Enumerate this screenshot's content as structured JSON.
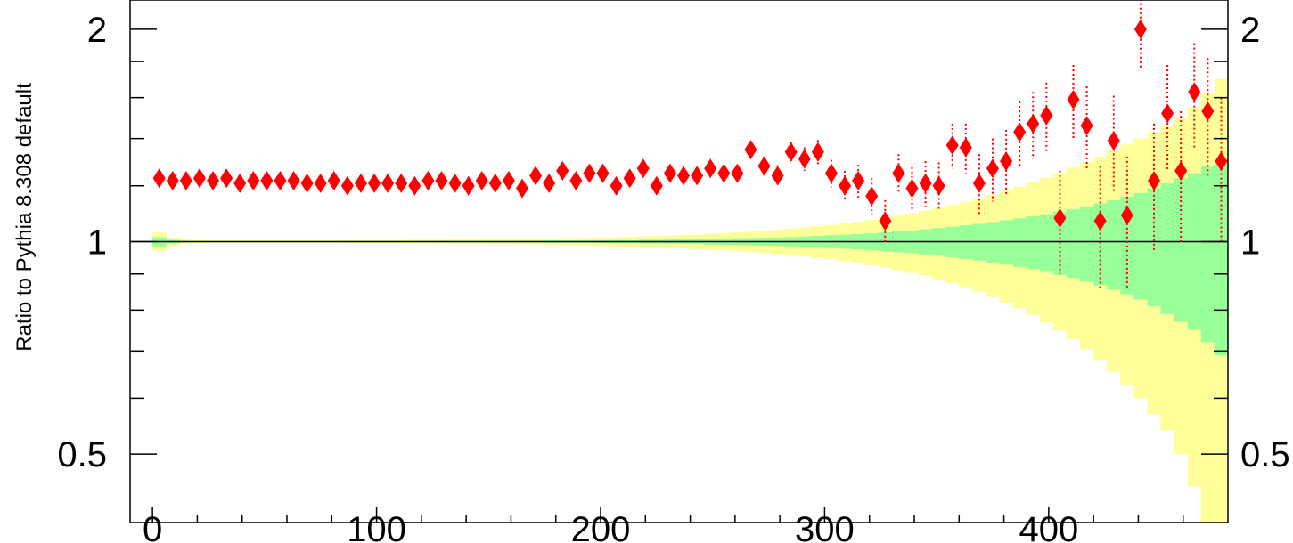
{
  "chart_data": {
    "type": "scatter",
    "ylabel": "Ratio to Pythia 8.308 default",
    "xlim": [
      -10,
      480
    ],
    "ylim": [
      0.4,
      2.2
    ],
    "y_scale": "log",
    "x_tick_labels": [
      "0",
      "100",
      "200",
      "300",
      "400"
    ],
    "x_tick_values": [
      0,
      100,
      200,
      300,
      400
    ],
    "y_tick_labels": [
      "0.5",
      "1",
      "2"
    ],
    "y_tick_values": [
      0.5,
      1,
      2
    ],
    "reference_line": 1,
    "grid": false,
    "colors": {
      "marker": "#ff0000",
      "error": "#ff0000",
      "band_inner": "#99ff99",
      "band_outer": "#ffff99",
      "reference": "#000000"
    },
    "band": {
      "bin_edges": [
        0,
        6,
        12,
        18,
        24,
        30,
        36,
        42,
        48,
        54,
        60,
        66,
        72,
        78,
        84,
        90,
        96,
        102,
        108,
        114,
        120,
        126,
        132,
        138,
        144,
        150,
        156,
        162,
        168,
        174,
        180,
        186,
        192,
        198,
        204,
        210,
        216,
        222,
        228,
        234,
        240,
        246,
        252,
        258,
        264,
        270,
        276,
        282,
        288,
        294,
        300,
        306,
        312,
        318,
        324,
        330,
        336,
        342,
        348,
        354,
        360,
        366,
        372,
        378,
        384,
        390,
        396,
        402,
        408,
        414,
        420,
        426,
        432,
        438,
        444,
        450,
        456,
        462,
        468,
        474,
        480
      ],
      "inner_half": [
        0.015,
        0.006,
        0.003,
        0.002,
        0.002,
        0.002,
        0.002,
        0.002,
        0.002,
        0.002,
        0.002,
        0.002,
        0.002,
        0.002,
        0.002,
        0.002,
        0.002,
        0.002,
        0.002,
        0.002,
        0.002,
        0.003,
        0.003,
        0.003,
        0.003,
        0.003,
        0.003,
        0.003,
        0.003,
        0.004,
        0.004,
        0.004,
        0.004,
        0.005,
        0.005,
        0.005,
        0.006,
        0.006,
        0.007,
        0.007,
        0.008,
        0.009,
        0.01,
        0.011,
        0.012,
        0.013,
        0.014,
        0.015,
        0.017,
        0.019,
        0.021,
        0.023,
        0.025,
        0.028,
        0.031,
        0.034,
        0.037,
        0.041,
        0.045,
        0.05,
        0.055,
        0.06,
        0.066,
        0.072,
        0.079,
        0.086,
        0.094,
        0.103,
        0.112,
        0.122,
        0.133,
        0.145,
        0.158,
        0.172,
        0.19,
        0.21,
        0.23,
        0.25,
        0.28,
        0.31
      ],
      "outer_half": [
        0.03,
        0.013,
        0.007,
        0.005,
        0.004,
        0.004,
        0.004,
        0.004,
        0.004,
        0.004,
        0.004,
        0.004,
        0.004,
        0.004,
        0.005,
        0.005,
        0.005,
        0.005,
        0.005,
        0.006,
        0.006,
        0.006,
        0.007,
        0.007,
        0.007,
        0.008,
        0.008,
        0.009,
        0.009,
        0.01,
        0.011,
        0.012,
        0.013,
        0.014,
        0.015,
        0.016,
        0.017,
        0.019,
        0.02,
        0.022,
        0.024,
        0.026,
        0.028,
        0.031,
        0.033,
        0.036,
        0.04,
        0.043,
        0.047,
        0.052,
        0.056,
        0.062,
        0.068,
        0.074,
        0.081,
        0.089,
        0.097,
        0.106,
        0.116,
        0.127,
        0.138,
        0.151,
        0.165,
        0.18,
        0.196,
        0.213,
        0.232,
        0.252,
        0.273,
        0.296,
        0.32,
        0.346,
        0.373,
        0.4,
        0.43,
        0.46,
        0.5,
        0.55,
        0.62,
        0.7
      ]
    },
    "points": {
      "x": [
        3,
        9,
        15,
        21,
        27,
        33,
        39,
        45,
        51,
        57,
        63,
        69,
        75,
        81,
        87,
        93,
        99,
        105,
        111,
        117,
        123,
        129,
        135,
        141,
        147,
        153,
        159,
        165,
        171,
        177,
        183,
        189,
        195,
        201,
        207,
        213,
        219,
        225,
        231,
        237,
        243,
        249,
        255,
        261,
        267,
        273,
        279,
        285,
        291,
        297,
        303,
        309,
        315,
        321,
        327,
        333,
        339,
        345,
        351,
        357,
        363,
        369,
        375,
        381,
        387,
        393,
        399,
        405,
        411,
        417,
        423,
        429,
        435,
        441,
        447,
        453,
        459,
        465,
        471,
        477
      ],
      "y": [
        1.23,
        1.22,
        1.22,
        1.23,
        1.22,
        1.23,
        1.21,
        1.22,
        1.22,
        1.22,
        1.22,
        1.21,
        1.21,
        1.22,
        1.2,
        1.21,
        1.21,
        1.21,
        1.21,
        1.2,
        1.22,
        1.22,
        1.21,
        1.2,
        1.22,
        1.21,
        1.22,
        1.19,
        1.24,
        1.21,
        1.26,
        1.22,
        1.25,
        1.25,
        1.2,
        1.23,
        1.27,
        1.2,
        1.25,
        1.24,
        1.24,
        1.27,
        1.25,
        1.25,
        1.35,
        1.28,
        1.24,
        1.34,
        1.31,
        1.34,
        1.25,
        1.2,
        1.22,
        1.16,
        1.07,
        1.25,
        1.19,
        1.21,
        1.2,
        1.37,
        1.36,
        1.21,
        1.27,
        1.3,
        1.43,
        1.47,
        1.51,
        1.08,
        1.59,
        1.46,
        1.07,
        1.39,
        1.09,
        2.0,
        1.22,
        1.52,
        1.26,
        1.63,
        1.53,
        1.3
      ],
      "err_up": [
        0.01,
        0.01,
        0.01,
        0.01,
        0.01,
        0.01,
        0.01,
        0.01,
        0.01,
        0.01,
        0.01,
        0.01,
        0.01,
        0.01,
        0.01,
        0.01,
        0.01,
        0.01,
        0.01,
        0.01,
        0.01,
        0.01,
        0.01,
        0.01,
        0.01,
        0.01,
        0.012,
        0.012,
        0.012,
        0.013,
        0.014,
        0.015,
        0.016,
        0.017,
        0.018,
        0.019,
        0.02,
        0.022,
        0.024,
        0.026,
        0.028,
        0.03,
        0.032,
        0.035,
        0.037,
        0.04,
        0.043,
        0.046,
        0.05,
        0.053,
        0.056,
        0.06,
        0.065,
        0.07,
        0.075,
        0.08,
        0.085,
        0.09,
        0.095,
        0.1,
        0.11,
        0.12,
        0.13,
        0.14,
        0.15,
        0.16,
        0.17,
        0.18,
        0.19,
        0.2,
        0.21,
        0.22,
        0.23,
        0.24,
        0.25,
        0.26,
        0.27,
        0.28,
        0.29,
        0.3
      ],
      "err_down": [
        0.01,
        0.01,
        0.01,
        0.01,
        0.01,
        0.01,
        0.01,
        0.01,
        0.01,
        0.01,
        0.01,
        0.01,
        0.01,
        0.01,
        0.01,
        0.01,
        0.01,
        0.01,
        0.01,
        0.01,
        0.01,
        0.01,
        0.01,
        0.01,
        0.01,
        0.01,
        0.012,
        0.012,
        0.012,
        0.013,
        0.014,
        0.015,
        0.016,
        0.017,
        0.018,
        0.019,
        0.02,
        0.022,
        0.024,
        0.026,
        0.028,
        0.03,
        0.032,
        0.035,
        0.037,
        0.04,
        0.043,
        0.046,
        0.05,
        0.053,
        0.056,
        0.06,
        0.065,
        0.07,
        0.075,
        0.08,
        0.085,
        0.09,
        0.095,
        0.1,
        0.11,
        0.12,
        0.13,
        0.14,
        0.15,
        0.16,
        0.17,
        0.18,
        0.19,
        0.2,
        0.21,
        0.22,
        0.23,
        0.24,
        0.25,
        0.26,
        0.27,
        0.28,
        0.29,
        0.3
      ]
    }
  }
}
